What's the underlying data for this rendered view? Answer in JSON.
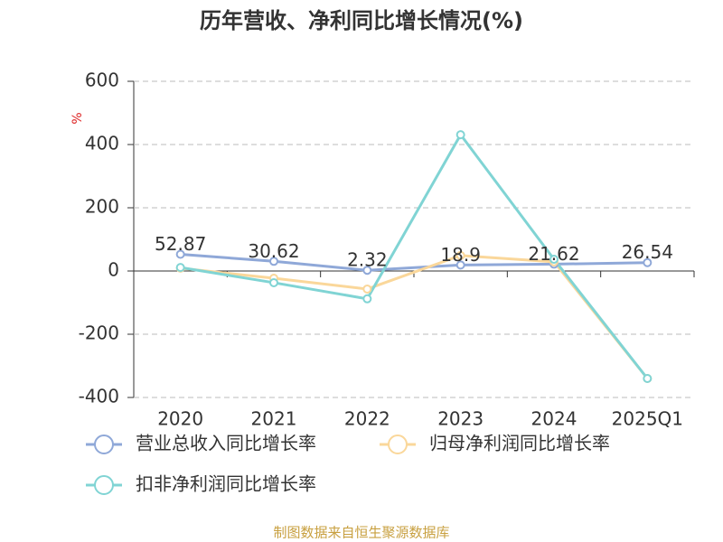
{
  "chart_data": {
    "type": "line",
    "title": "历年营收、净利同比增长情况(%)",
    "y_label": "%",
    "categories": [
      "2020",
      "2021",
      "2022",
      "2023",
      "2024",
      "2025Q1"
    ],
    "series": [
      {
        "name": "营业总收入同比增长率",
        "color": "#8fa8d8",
        "values": [
          52.87,
          30.62,
          2.32,
          18.9,
          21.62,
          26.54
        ]
      },
      {
        "name": "归母净利润同比增长率",
        "color": "#fad79a",
        "values": [
          9,
          -23,
          -57,
          49,
          29,
          -340
        ]
      },
      {
        "name": "扣非净利润同比增长率",
        "color": "#80d4d4",
        "values": [
          11,
          -37,
          -88,
          431,
          37,
          -340
        ]
      }
    ],
    "ylim": [
      -400,
      600
    ],
    "yticks": [
      -400,
      -200,
      0,
      200,
      400,
      600
    ],
    "grid": true,
    "source": "制图数据来自恒生聚源数据库"
  }
}
